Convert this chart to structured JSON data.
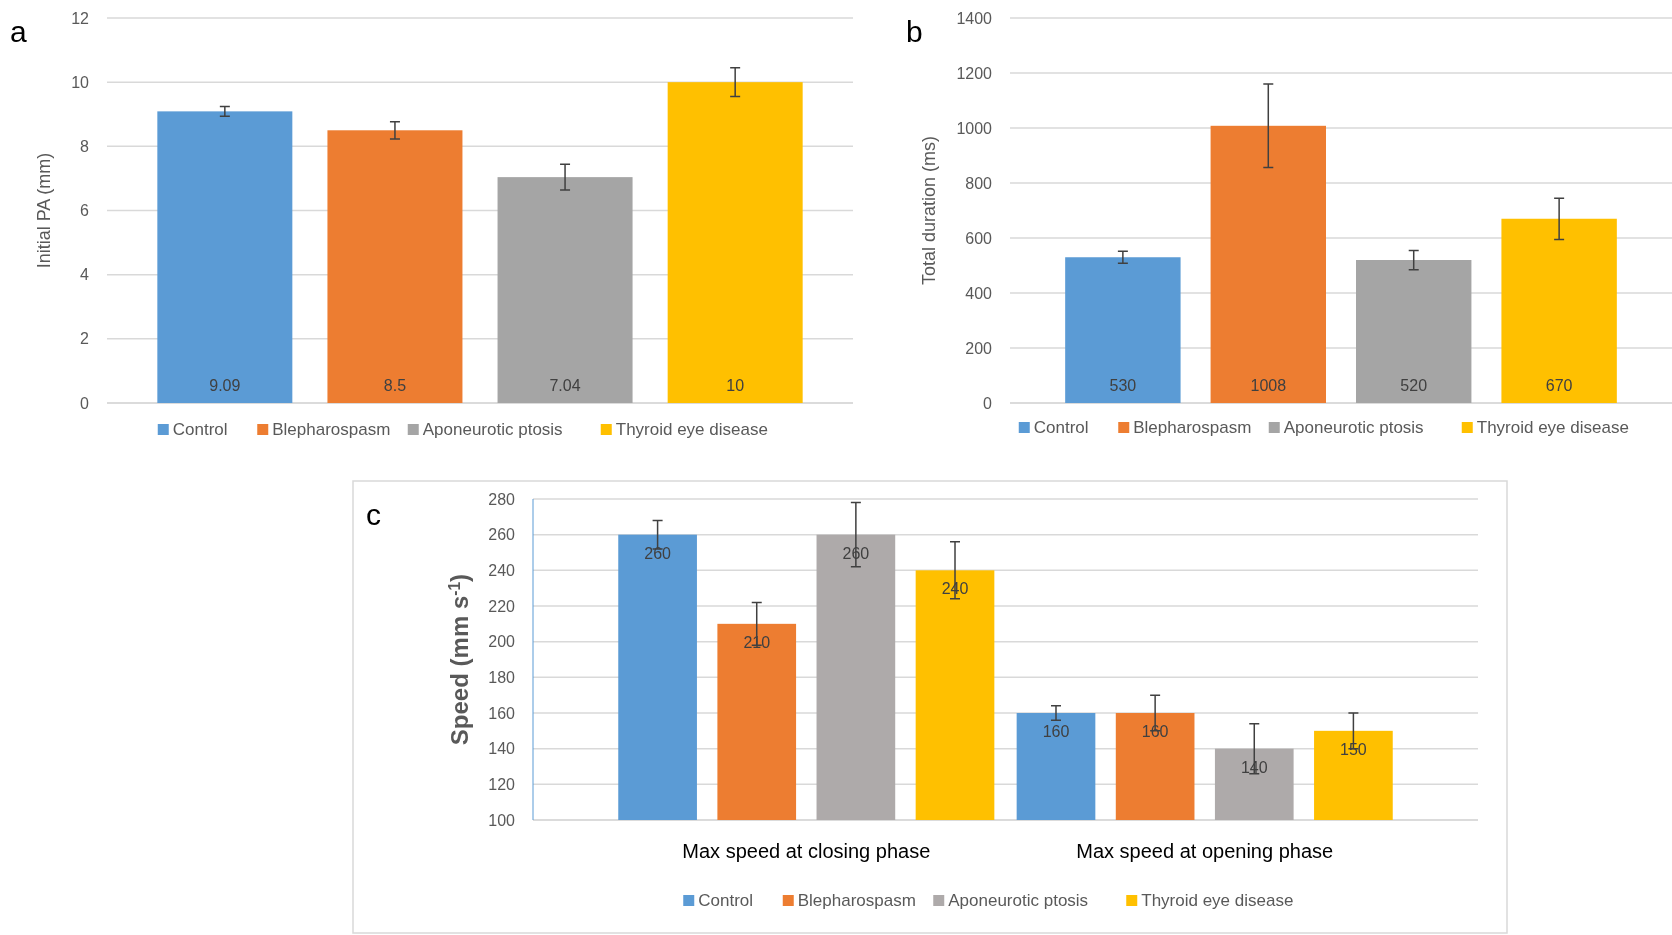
{
  "chart_data": [
    {
      "type": "bar",
      "title": "a",
      "ylabel": "Initial PA (mm)",
      "categories": [
        null
      ],
      "series": [
        {
          "name": "Control",
          "color": "#5b9bd5",
          "values": [
            9.09
          ],
          "errors": [
            0.15
          ]
        },
        {
          "name": "Blepharospasm",
          "color": "#ed7d31",
          "values": [
            8.5
          ],
          "errors": [
            0.27
          ]
        },
        {
          "name": "Aponeurotic ptosis",
          "color": "#a5a5a5",
          "values": [
            7.04
          ],
          "errors": [
            0.4
          ]
        },
        {
          "name": "Thyroid eye disease",
          "color": "#ffc000",
          "values": [
            10
          ],
          "errors": [
            0.45
          ]
        }
      ],
      "ylim": [
        0,
        12
      ],
      "yticks": [
        0,
        2,
        4,
        6,
        8,
        10,
        12
      ],
      "grid": "y",
      "legend": "bottom",
      "data_labels": true
    },
    {
      "type": "bar",
      "title": "b",
      "ylabel": "Total duration (ms)",
      "categories": [
        null
      ],
      "series": [
        {
          "name": "Control",
          "color": "#5b9bd5",
          "values": [
            530
          ],
          "errors": [
            22
          ]
        },
        {
          "name": "Blepharospasm",
          "color": "#ed7d31",
          "values": [
            1008
          ],
          "errors": [
            152
          ]
        },
        {
          "name": "Aponeurotic ptosis",
          "color": "#a5a5a5",
          "values": [
            520
          ],
          "errors": [
            35
          ]
        },
        {
          "name": "Thyroid eye disease",
          "color": "#ffc000",
          "values": [
            670
          ],
          "errors": [
            75
          ]
        }
      ],
      "ylim": [
        0,
        1400
      ],
      "yticks": [
        0,
        200,
        400,
        600,
        800,
        1000,
        1200,
        1400
      ],
      "grid": "y",
      "legend": "bottom",
      "data_labels": true
    },
    {
      "type": "bar",
      "title": "c",
      "ylabel": "Speed (mm s$^{-1}$)",
      "categories": [
        "Max speed at closing phase",
        "Max speed at opening phase"
      ],
      "series": [
        {
          "name": "Control",
          "color": "#5b9bd5",
          "values": [
            260,
            160
          ],
          "errors": [
            8,
            4
          ]
        },
        {
          "name": "Blepharospasm",
          "color": "#ed7d31",
          "values": [
            210,
            160
          ],
          "errors": [
            12,
            10
          ]
        },
        {
          "name": "Aponeurotic ptosis",
          "color": "#aeaaaa",
          "values": [
            260,
            140
          ],
          "errors": [
            18,
            14
          ]
        },
        {
          "name": "Thyroid eye disease",
          "color": "#ffc000",
          "values": [
            240,
            150
          ],
          "errors": [
            16,
            10
          ]
        }
      ],
      "ylim": [
        100,
        280
      ],
      "yticks": [
        100,
        120,
        140,
        160,
        180,
        200,
        220,
        240,
        260,
        280
      ],
      "grid": "y",
      "legend": "bottom",
      "data_labels": true
    }
  ]
}
